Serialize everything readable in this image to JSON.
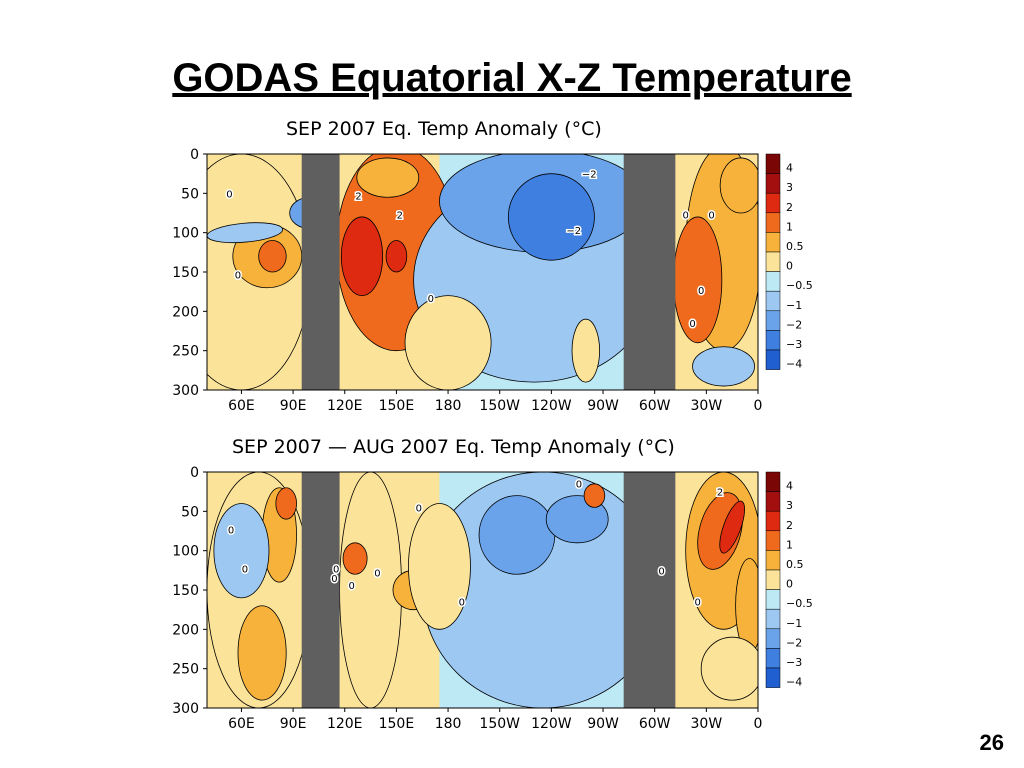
{
  "slide": {
    "title": "GODAS Equatorial X-Z Temperature",
    "page_number": "26"
  },
  "colors": {
    "background": "#ffffff",
    "land_mask": "#5f5f5f",
    "contour_line": "#000000",
    "scale": [
      "#1f5fd0",
      "#3e7fe0",
      "#6aa3ea",
      "#9cc8f2",
      "#bde9f5",
      "#fbe39a",
      "#f7b23c",
      "#ef6a1c",
      "#dd2a10",
      "#a30f0f",
      "#7a0606"
    ]
  },
  "chart_data": [
    {
      "type": "heatmap",
      "title": "SEP  2007  Eq.  Temp  Anomaly  (°C)",
      "xlabel": "",
      "ylabel": "",
      "x_ticks": [
        "60E",
        "90E",
        "120E",
        "150E",
        "180",
        "150W",
        "120W",
        "90W",
        "60W",
        "30W",
        "0"
      ],
      "y_ticks": [
        "0",
        "50",
        "100",
        "150",
        "200",
        "250",
        "300"
      ],
      "ylim": [
        300,
        0
      ],
      "colorbar_labels": [
        "4",
        "3",
        "2",
        "1",
        "0.5",
        "0",
        "−0.5",
        "−1",
        "−2",
        "−3",
        "−4"
      ],
      "contour_labels": [
        "−2",
        "−2",
        "2",
        "2",
        "0",
        "0",
        "0",
        "0",
        "0",
        "0",
        "0"
      ],
      "land_masks": [
        "90E–120E",
        "60W–40W"
      ],
      "features": [
        {
          "region": "90E–110E, 50–100 m",
          "value": -2
        },
        {
          "region": "120E–130E, 80–180 m",
          "value": 2
        },
        {
          "region": "145E–155E, 110–150 m",
          "value": 2
        },
        {
          "region": "120E–170W, 0–260 m",
          "value": 1
        },
        {
          "region": "175E–90W, 0–120 m",
          "value": -1
        },
        {
          "region": "150W–110W, 40–160 m",
          "value": -2
        },
        {
          "region": "20W–0, 100–250 m",
          "value": 1
        },
        {
          "region": "60E–80E, 100–160 m",
          "value": 0.5
        }
      ]
    },
    {
      "type": "heatmap",
      "title": "SEP  2007  —  AUG  2007  Eq.  Temp  Anomaly  (°C)",
      "xlabel": "",
      "ylabel": "",
      "x_ticks": [
        "60E",
        "90E",
        "120E",
        "150E",
        "180",
        "150W",
        "120W",
        "90W",
        "60W",
        "30W",
        "0"
      ],
      "y_ticks": [
        "0",
        "50",
        "100",
        "150",
        "200",
        "250",
        "300"
      ],
      "ylim": [
        300,
        0
      ],
      "colorbar_labels": [
        "4",
        "3",
        "2",
        "1",
        "0.5",
        "0",
        "−0.5",
        "−1",
        "−2",
        "−3",
        "−4"
      ],
      "contour_labels": [
        "2",
        "0",
        "0",
        "0",
        "0",
        "0",
        "0",
        "0",
        "0",
        "0",
        "0",
        "0"
      ],
      "land_masks": [
        "90E–120E",
        "60W–40W"
      ],
      "features": [
        {
          "region": "20W–10W, 30–110 m",
          "value": 2
        },
        {
          "region": "40W–0, 20–180 m",
          "value": 1
        },
        {
          "region": "75E–90E, 20–140 m",
          "value": 0.5
        },
        {
          "region": "120E–135E, 90–130 m",
          "value": 1
        },
        {
          "region": "150E–170E, 130–170 m",
          "value": 0.5
        },
        {
          "region": "175E–95W, 0–300 m",
          "value": -0.5
        },
        {
          "region": "150W–120W, 20–120 m",
          "value": -1
        },
        {
          "region": "100W–90W, 10–40 m",
          "value": 1
        }
      ]
    }
  ]
}
